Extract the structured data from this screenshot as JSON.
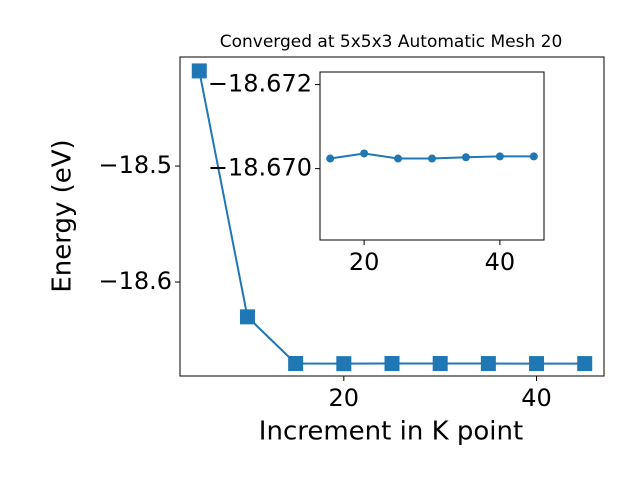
{
  "chart_data": [
    {
      "type": "line",
      "title": "Converged at 5x5x3 Automatic Mesh 20",
      "x_label": "Increment in K point",
      "y_label": "Energy (eV)",
      "x": [
        5,
        10,
        15,
        20,
        25,
        30,
        35,
        40,
        45
      ],
      "series": [
        {
          "color": "#1f77b4",
          "marker": "square",
          "values": [
            -18.418,
            -18.63,
            -18.67024,
            -18.67036,
            -18.67024,
            -18.67024,
            -18.67027,
            -18.67029,
            -18.67029
          ]
        }
      ],
      "xlim": [
        3,
        47
      ],
      "xticks": [
        20,
        40
      ],
      "ylim": [
        -18.681,
        -18.406
      ],
      "yticks": [
        {
          "value": -18.6,
          "label": "−18.6"
        },
        {
          "value": -18.5,
          "label": "−18.5"
        }
      ]
    },
    {
      "type": "line",
      "x": [
        15,
        20,
        25,
        30,
        35,
        40,
        45
      ],
      "series": [
        {
          "color": "#1f77b4",
          "marker": "circle",
          "values": [
            -18.67024,
            -18.67036,
            -18.67024,
            -18.67024,
            -18.67027,
            -18.67029,
            -18.67029
          ]
        }
      ],
      "xlim": [
        13.5,
        46.5
      ],
      "xticks": [
        20,
        40
      ],
      "ylim": [
        -18.6683,
        -18.6723
      ],
      "yticks": [
        {
          "value": -18.672,
          "label": "−18.672"
        },
        {
          "value": -18.67,
          "label": "−18.670"
        }
      ]
    }
  ]
}
